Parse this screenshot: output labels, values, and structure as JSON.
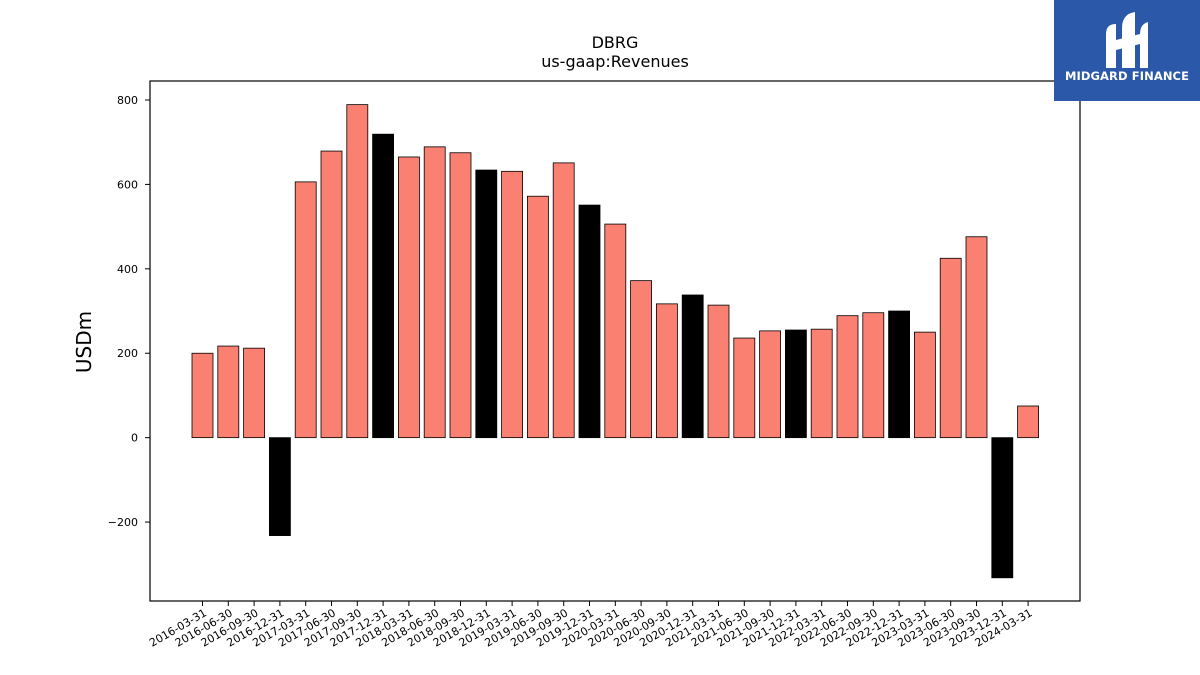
{
  "chart_data": {
    "type": "bar",
    "title": "DBRG",
    "subtitle": "us-gaap:Revenues",
    "xlabel": "",
    "ylabel": "USDm",
    "ylim": [
      -387,
      845
    ],
    "yticks": [
      -200,
      0,
      200,
      400,
      600,
      800
    ],
    "grid": false,
    "categories": [
      "2016-03-31",
      "2016-06-30",
      "2016-09-30",
      "2016-12-31",
      "2017-03-31",
      "2017-06-30",
      "2017-09-30",
      "2017-12-31",
      "2018-03-31",
      "2018-06-30",
      "2018-09-30",
      "2018-12-31",
      "2019-03-31",
      "2019-06-30",
      "2019-09-30",
      "2019-12-31",
      "2020-03-31",
      "2020-06-30",
      "2020-09-30",
      "2020-12-31",
      "2021-03-31",
      "2021-06-30",
      "2021-09-30",
      "2021-12-31",
      "2022-03-31",
      "2022-06-30",
      "2022-09-30",
      "2022-12-31",
      "2023-03-31",
      "2023-06-30",
      "2023-09-30",
      "2023-12-31",
      "2024-03-31"
    ],
    "values": [
      200,
      217,
      212,
      -232,
      606,
      679,
      789,
      719,
      665,
      689,
      675,
      634,
      631,
      572,
      651,
      551,
      506,
      372,
      317,
      338,
      314,
      236,
      253,
      255,
      257,
      289,
      296,
      300,
      250,
      425,
      476,
      -332,
      75
    ],
    "bar_colors": [
      "#fa8072",
      "#fa8072",
      "#fa8072",
      "#000000",
      "#fa8072",
      "#fa8072",
      "#fa8072",
      "#000000",
      "#fa8072",
      "#fa8072",
      "#fa8072",
      "#000000",
      "#fa8072",
      "#fa8072",
      "#fa8072",
      "#000000",
      "#fa8072",
      "#fa8072",
      "#fa8072",
      "#000000",
      "#fa8072",
      "#fa8072",
      "#fa8072",
      "#000000",
      "#fa8072",
      "#fa8072",
      "#fa8072",
      "#000000",
      "#fa8072",
      "#fa8072",
      "#fa8072",
      "#000000",
      "#fa8072"
    ]
  },
  "logo": {
    "text": "MIDGARD FINANCE",
    "background": "#2b58a8"
  }
}
